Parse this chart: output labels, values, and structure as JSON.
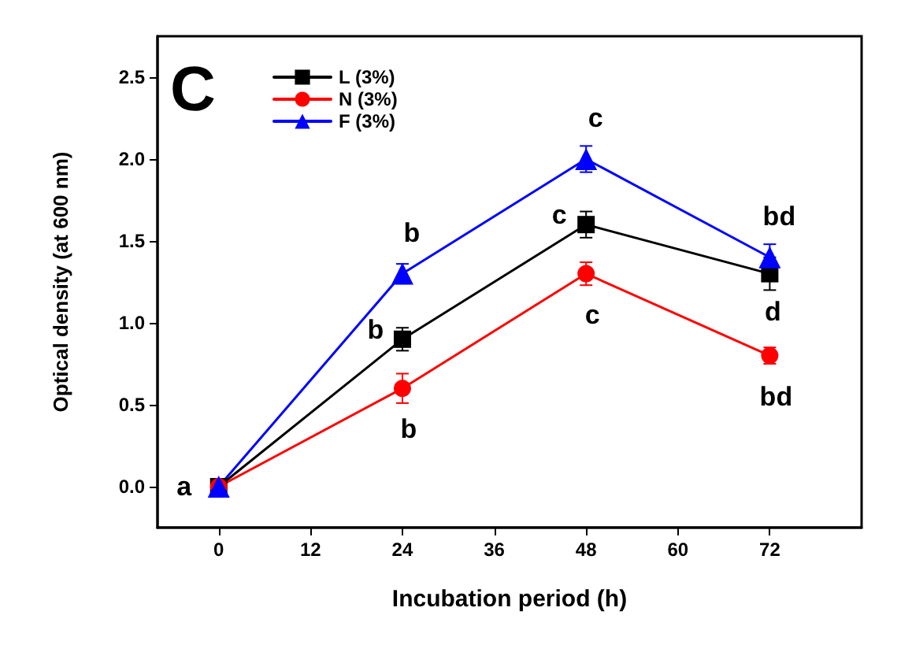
{
  "chart_data": {
    "type": "line",
    "xlabel": "Incubation period (h)",
    "ylabel": "Optical density (at 600 nm)",
    "x": [
      0,
      24,
      48,
      72
    ],
    "series": [
      {
        "name": "L (3%)",
        "color": "#000000",
        "marker": "square",
        "values": [
          0,
          0.9,
          1.6,
          1.3
        ],
        "errors": [
          null,
          0.07,
          0.08,
          0.1
        ]
      },
      {
        "name": "N (3%)",
        "color": "#ff0000",
        "marker": "circle",
        "values": [
          0,
          0.6,
          1.3,
          0.8
        ],
        "errors": [
          null,
          0.09,
          0.07,
          0.05
        ]
      },
      {
        "name": "F (3%)",
        "color": "#0000ff",
        "marker": "triangle",
        "values": [
          0,
          1.3,
          2.0,
          1.4
        ],
        "errors": [
          null,
          0.06,
          0.08,
          0.08
        ]
      }
    ],
    "xlim": [
      -8,
      84
    ],
    "xticks": [
      0,
      12,
      24,
      36,
      48,
      60,
      72
    ],
    "ylim": [
      -0.25,
      2.75
    ],
    "yticks": [
      {
        "value": 0,
        "label": "0.0"
      },
      {
        "value": 0.5,
        "label": "0.5"
      },
      {
        "value": 1,
        "label": "1.0"
      },
      {
        "value": 1.5,
        "label": "1.5"
      },
      {
        "value": 2,
        "label": "2.0"
      },
      {
        "value": 2.5,
        "label": "2.5"
      }
    ],
    "grid": false,
    "legend": "top left",
    "line_style": "solid",
    "annotations": [
      "C",
      {
        "text": "a",
        "x": 0,
        "y": 0
      },
      {
        "text": "b",
        "x": 24,
        "y": 0.9
      },
      {
        "text": "b",
        "x": 24,
        "y": 1.3
      },
      {
        "text": "b",
        "x": 24,
        "y": 0.6
      },
      {
        "text": "c",
        "x": 48,
        "y": 2.0
      },
      {
        "text": "c",
        "x": 48,
        "y": 1.6
      },
      {
        "text": "c",
        "x": 48,
        "y": 1.3
      },
      {
        "text": "bd",
        "x": 72,
        "y": 1.4
      },
      {
        "text": "d",
        "x": 72,
        "y": 1.3
      },
      {
        "text": "bd",
        "x": 72,
        "y": 0.8
      }
    ]
  }
}
